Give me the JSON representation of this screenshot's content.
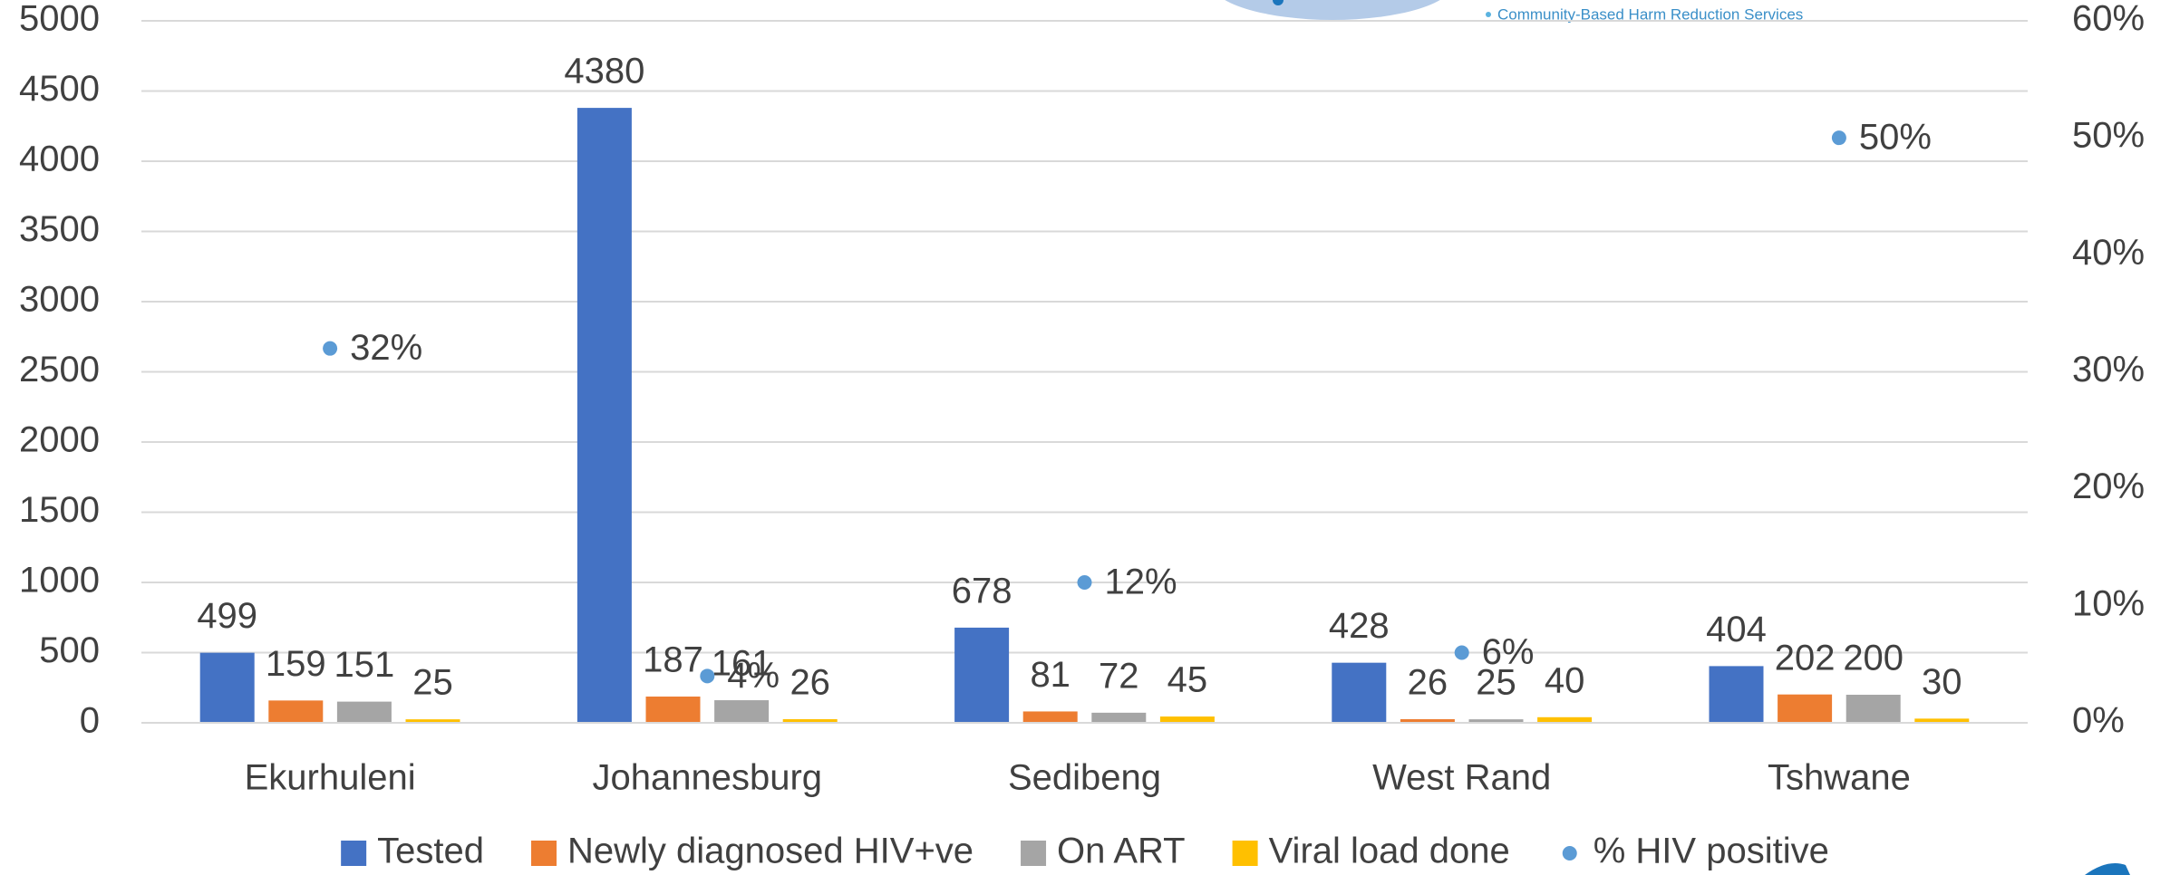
{
  "chart_data": {
    "type": "bar",
    "categories": [
      "Ekurhuleni",
      "Johannesburg",
      "Sedibeng",
      "West Rand",
      "Tshwane"
    ],
    "series": [
      {
        "name": "Tested",
        "color": "#4472c4",
        "values": [
          499,
          4380,
          678,
          428,
          404
        ]
      },
      {
        "name": "Newly diagnosed HIV+ve",
        "color": "#ed7d31",
        "values": [
          159,
          187,
          81,
          26,
          202
        ]
      },
      {
        "name": "On ART",
        "color": "#a5a5a5",
        "values": [
          151,
          161,
          72,
          25,
          200
        ]
      },
      {
        "name": "Viral load done",
        "color": "#ffc000",
        "values": [
          25,
          26,
          45,
          40,
          30
        ]
      },
      {
        "name": "% HIV positive",
        "color": "#5b9bd5",
        "axis": "y2",
        "values": [
          32,
          4,
          12,
          6,
          50
        ],
        "value_labels": [
          "32%",
          "4%",
          "12%",
          "6%",
          "50%"
        ]
      }
    ],
    "ylim": [
      0,
      5000
    ],
    "yticks": [
      0,
      500,
      1000,
      1500,
      2000,
      2500,
      3000,
      3500,
      4000,
      4500,
      5000
    ],
    "y2lim": [
      0,
      60
    ],
    "y2ticks": [
      {
        "value": 0,
        "label": "0%"
      },
      {
        "value": 10,
        "label": "10%"
      },
      {
        "value": 20,
        "label": "20%"
      },
      {
        "value": 30,
        "label": "30%"
      },
      {
        "value": 40,
        "label": "40%"
      },
      {
        "value": 50,
        "label": "50%"
      },
      {
        "value": 60,
        "label": "60%"
      }
    ],
    "grid": true,
    "legend": "bottom",
    "annotations": [
      "Community-Based Harm Reduction Services"
    ]
  }
}
